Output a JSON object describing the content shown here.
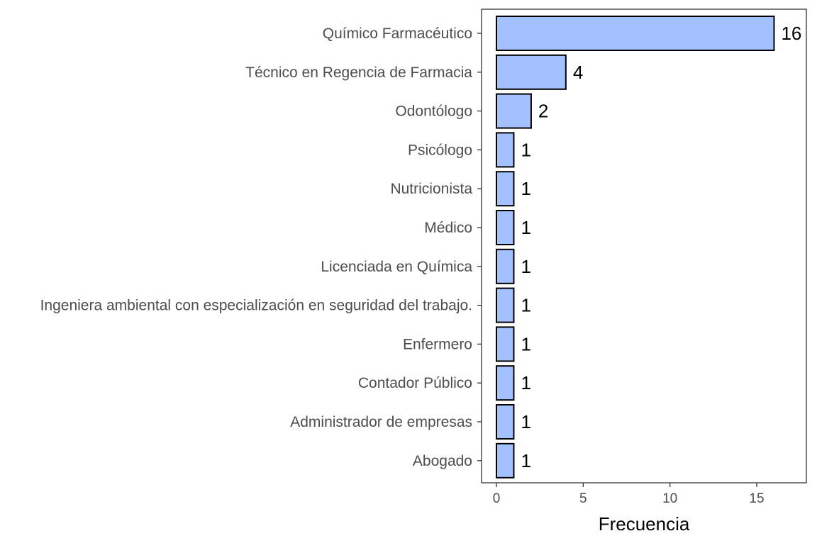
{
  "chart_data": {
    "type": "bar",
    "orientation": "horizontal",
    "categories": [
      "Químico Farmacéutico",
      "Técnico en Regencia de Farmacia",
      "Odontólogo",
      "Psicólogo",
      "Nutricionista",
      "Médico",
      "Licenciada en Química",
      "Ingeniera ambiental con especialización en seguridad del trabajo.",
      "Enfermero",
      "Contador Público",
      "Administrador de empresas",
      "Abogado"
    ],
    "values": [
      16,
      4,
      2,
      1,
      1,
      1,
      1,
      1,
      1,
      1,
      1,
      1
    ],
    "data_labels": [
      "16",
      "4",
      "2",
      "1",
      "1",
      "1",
      "1",
      "1",
      "1",
      "1",
      "1",
      "1"
    ],
    "xlabel": "Frecuencia",
    "ylabel": "",
    "title": "",
    "xlim": [
      -0.9,
      17.9
    ],
    "xticks": [
      0,
      5,
      10,
      15
    ],
    "xtick_labels": [
      "0",
      "5",
      "10",
      "15"
    ],
    "grid": false,
    "legend": "none",
    "bar_fill_color": "#a4c1ff",
    "bar_edge_color": "#000000"
  }
}
